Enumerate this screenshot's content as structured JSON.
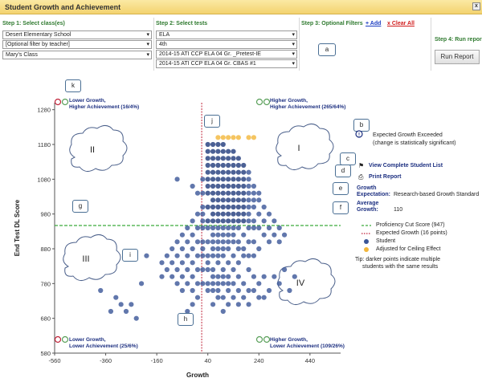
{
  "window": {
    "title": "Student Growth and Achievement",
    "close": "x"
  },
  "step1": {
    "label": "Step 1: Select class(es)",
    "school": "Desert Elementary School",
    "teacher_filter": "[Optional filter by teacher]",
    "class": "Mary's Class"
  },
  "step2": {
    "label": "Step 2: Select tests",
    "subject": "ELA",
    "grade": "4th",
    "test1": "2014-15 ATI CCP ELA 04 Gr. _Pretest-IE",
    "test2": "2014-15 ATI CCP ELA 04 Gr. CBAS #1"
  },
  "step3": {
    "label": "Step 3: Optional Filters",
    "add": "+ Add",
    "clear": "x Clear All"
  },
  "step4": {
    "label": "Step 4: Run repor",
    "run_button": "Run Report"
  },
  "callouts": {
    "a": "a",
    "b": "b",
    "c": "c",
    "d": "d",
    "e": "e",
    "f": "f",
    "g": "g",
    "h": "h",
    "i": "i",
    "j": "j",
    "k": "k"
  },
  "quadrants": {
    "tl": [
      "Lower Growth,",
      "Higher Achievement (16/4%)"
    ],
    "tr": [
      "Higher Growth,",
      "Higher Achievement (265/64%)"
    ],
    "bl": [
      "Lower Growth,",
      "Lower Achievement (25/6%)"
    ],
    "br": [
      "Higher Growth,",
      "Lower Achievement (109/26%)"
    ],
    "labels": [
      "I",
      "II",
      "III",
      "IV"
    ]
  },
  "side": {
    "exceeded": "Expected Growth Exceeded",
    "exceeded_note": "(change is statistically significant)",
    "view_list": "View Complete Student List",
    "print": "Print Report",
    "growth_exp_label": "Growth",
    "growth_exp_label2": "Expectation:",
    "growth_exp_value": "Research-based Growth Standard",
    "avg_label": "Average",
    "avg_label2": "Growth:",
    "avg_value": "110",
    "legend": [
      "Proficiency Cut Score (947)",
      "Expected Growth (16 points)",
      "Student",
      "Adjusted for Ceiling Effect"
    ],
    "tip": "Tip: darker points indicate multiple",
    "tip2": "students with the same results"
  },
  "chart_data": {
    "type": "scatter",
    "xlabel": "Growth",
    "ylabel": "End Test DL Score",
    "xlim": [
      -560,
      560
    ],
    "ylim": [
      580,
      1300
    ],
    "xticks": [
      -560,
      -360,
      -160,
      40,
      240,
      440
    ],
    "yticks": [
      580,
      680,
      780,
      880,
      980,
      1080,
      1180,
      1280
    ],
    "proficiency_cut": 947,
    "expected_growth": 16,
    "colors": {
      "student": "#3a5597",
      "student_dark": "#1f3a7a",
      "ceiling": "#f3b63a",
      "cut": "#3caa3c",
      "growth": "#c0243a"
    },
    "series": [
      {
        "name": "Student",
        "points": [
          [
            -80,
            1080
          ],
          [
            -20,
            1060
          ],
          [
            0,
            1040
          ],
          [
            20,
            1080
          ],
          [
            40,
            1180
          ],
          [
            40,
            1160
          ],
          [
            40,
            1140
          ],
          [
            40,
            1120
          ],
          [
            40,
            1100
          ],
          [
            40,
            1080
          ],
          [
            40,
            1060
          ],
          [
            40,
            1040
          ],
          [
            40,
            1000
          ],
          [
            40,
            960
          ],
          [
            40,
            940
          ],
          [
            40,
            900
          ],
          [
            40,
            860
          ],
          [
            40,
            840
          ],
          [
            60,
            1180
          ],
          [
            60,
            1160
          ],
          [
            60,
            1140
          ],
          [
            60,
            1120
          ],
          [
            60,
            1100
          ],
          [
            60,
            1080
          ],
          [
            60,
            1060
          ],
          [
            60,
            1040
          ],
          [
            60,
            1020
          ],
          [
            60,
            1000
          ],
          [
            60,
            980
          ],
          [
            60,
            960
          ],
          [
            60,
            940
          ],
          [
            60,
            920
          ],
          [
            60,
            900
          ],
          [
            60,
            880
          ],
          [
            60,
            860
          ],
          [
            60,
            820
          ],
          [
            80,
            1180
          ],
          [
            80,
            1160
          ],
          [
            80,
            1140
          ],
          [
            80,
            1120
          ],
          [
            80,
            1100
          ],
          [
            80,
            1080
          ],
          [
            80,
            1060
          ],
          [
            80,
            1040
          ],
          [
            80,
            1020
          ],
          [
            80,
            1000
          ],
          [
            80,
            980
          ],
          [
            80,
            960
          ],
          [
            80,
            940
          ],
          [
            80,
            920
          ],
          [
            80,
            900
          ],
          [
            80,
            880
          ],
          [
            80,
            860
          ],
          [
            80,
            840
          ],
          [
            80,
            800
          ],
          [
            100,
            1180
          ],
          [
            100,
            1160
          ],
          [
            100,
            1140
          ],
          [
            100,
            1120
          ],
          [
            100,
            1100
          ],
          [
            100,
            1080
          ],
          [
            100,
            1060
          ],
          [
            100,
            1040
          ],
          [
            100,
            1020
          ],
          [
            100,
            1000
          ],
          [
            100,
            980
          ],
          [
            100,
            960
          ],
          [
            100,
            940
          ],
          [
            100,
            920
          ],
          [
            100,
            900
          ],
          [
            100,
            880
          ],
          [
            100,
            860
          ],
          [
            100,
            820
          ],
          [
            120,
            1160
          ],
          [
            120,
            1140
          ],
          [
            120,
            1120
          ],
          [
            120,
            1100
          ],
          [
            120,
            1080
          ],
          [
            120,
            1060
          ],
          [
            120,
            1040
          ],
          [
            120,
            1020
          ],
          [
            120,
            1000
          ],
          [
            120,
            980
          ],
          [
            120,
            960
          ],
          [
            120,
            940
          ],
          [
            120,
            920
          ],
          [
            120,
            900
          ],
          [
            120,
            880
          ],
          [
            120,
            840
          ],
          [
            120,
            800
          ],
          [
            140,
            1160
          ],
          [
            140,
            1140
          ],
          [
            140,
            1120
          ],
          [
            140,
            1100
          ],
          [
            140,
            1080
          ],
          [
            140,
            1060
          ],
          [
            140,
            1040
          ],
          [
            140,
            1020
          ],
          [
            140,
            1000
          ],
          [
            140,
            980
          ],
          [
            140,
            960
          ],
          [
            140,
            940
          ],
          [
            140,
            920
          ],
          [
            140,
            900
          ],
          [
            140,
            860
          ],
          [
            140,
            820
          ],
          [
            160,
            1140
          ],
          [
            160,
            1120
          ],
          [
            160,
            1100
          ],
          [
            160,
            1080
          ],
          [
            160,
            1060
          ],
          [
            160,
            1040
          ],
          [
            160,
            1020
          ],
          [
            160,
            1000
          ],
          [
            160,
            980
          ],
          [
            160,
            960
          ],
          [
            160,
            940
          ],
          [
            160,
            900
          ],
          [
            160,
            880
          ],
          [
            160,
            840
          ],
          [
            180,
            1120
          ],
          [
            180,
            1100
          ],
          [
            180,
            1080
          ],
          [
            180,
            1060
          ],
          [
            180,
            1040
          ],
          [
            180,
            1020
          ],
          [
            180,
            1000
          ],
          [
            180,
            980
          ],
          [
            180,
            960
          ],
          [
            180,
            920
          ],
          [
            180,
            880
          ],
          [
            180,
            860
          ],
          [
            200,
            1100
          ],
          [
            200,
            1080
          ],
          [
            200,
            1060
          ],
          [
            200,
            1040
          ],
          [
            200,
            1020
          ],
          [
            200,
            1000
          ],
          [
            200,
            980
          ],
          [
            200,
            960
          ],
          [
            200,
            940
          ],
          [
            200,
            900
          ],
          [
            200,
            860
          ],
          [
            200,
            820
          ],
          [
            220,
            1060
          ],
          [
            220,
            1040
          ],
          [
            220,
            1020
          ],
          [
            220,
            1000
          ],
          [
            220,
            960
          ],
          [
            220,
            940
          ],
          [
            220,
            900
          ],
          [
            220,
            860
          ],
          [
            240,
            1040
          ],
          [
            240,
            1020
          ],
          [
            240,
            980
          ],
          [
            240,
            940
          ],
          [
            240,
            880
          ],
          [
            260,
            1000
          ],
          [
            260,
            960
          ],
          [
            260,
            920
          ],
          [
            280,
            980
          ],
          [
            280,
            940
          ],
          [
            280,
            900
          ],
          [
            300,
            960
          ],
          [
            300,
            920
          ],
          [
            320,
            940
          ],
          [
            320,
            900
          ],
          [
            340,
            920
          ],
          [
            20,
            1040
          ],
          [
            20,
            1000
          ],
          [
            20,
            980
          ],
          [
            20,
            960
          ],
          [
            20,
            940
          ],
          [
            20,
            900
          ],
          [
            20,
            880
          ],
          [
            20,
            860
          ],
          [
            20,
            820
          ],
          [
            20,
            780
          ],
          [
            0,
            980
          ],
          [
            0,
            940
          ],
          [
            0,
            900
          ],
          [
            0,
            860
          ],
          [
            0,
            820
          ],
          [
            0,
            780
          ],
          [
            0,
            740
          ],
          [
            -20,
            960
          ],
          [
            -20,
            920
          ],
          [
            -20,
            880
          ],
          [
            -20,
            840
          ],
          [
            -20,
            800
          ],
          [
            -20,
            760
          ],
          [
            -20,
            720
          ],
          [
            -40,
            940
          ],
          [
            -40,
            900
          ],
          [
            -40,
            860
          ],
          [
            -40,
            820
          ],
          [
            -40,
            780
          ],
          [
            -40,
            700
          ],
          [
            -60,
            920
          ],
          [
            -60,
            880
          ],
          [
            -60,
            840
          ],
          [
            -60,
            800
          ],
          [
            -60,
            760
          ],
          [
            -80,
            900
          ],
          [
            -80,
            860
          ],
          [
            -80,
            820
          ],
          [
            -80,
            780
          ],
          [
            -100,
            880
          ],
          [
            -100,
            840
          ],
          [
            -100,
            800
          ],
          [
            -120,
            860
          ],
          [
            -120,
            820
          ],
          [
            -140,
            840
          ],
          [
            -140,
            800
          ],
          [
            40,
            820
          ],
          [
            40,
            780
          ],
          [
            40,
            760
          ],
          [
            60,
            800
          ],
          [
            60,
            780
          ],
          [
            60,
            760
          ],
          [
            60,
            720
          ],
          [
            80,
            780
          ],
          [
            80,
            760
          ],
          [
            80,
            740
          ],
          [
            100,
            800
          ],
          [
            100,
            780
          ],
          [
            100,
            740
          ],
          [
            100,
            700
          ],
          [
            120,
            780
          ],
          [
            120,
            760
          ],
          [
            120,
            720
          ],
          [
            140,
            780
          ],
          [
            140,
            740
          ],
          [
            160,
            800
          ],
          [
            160,
            760
          ],
          [
            160,
            720
          ],
          [
            180,
            780
          ],
          [
            180,
            740
          ],
          [
            200,
            760
          ],
          [
            200,
            720
          ],
          [
            220,
            800
          ],
          [
            220,
            760
          ],
          [
            240,
            780
          ],
          [
            240,
            740
          ],
          [
            260,
            800
          ],
          [
            260,
            740
          ],
          [
            280,
            760
          ],
          [
            300,
            800
          ],
          [
            320,
            780
          ],
          [
            340,
            820
          ],
          [
            360,
            760
          ],
          [
            380,
            800
          ],
          [
            -200,
            860
          ],
          [
            -220,
            780
          ],
          [
            -300,
            720
          ],
          [
            -320,
            740
          ],
          [
            -340,
            700
          ],
          [
            -380,
            760
          ],
          [
            -260,
            720
          ],
          [
            -280,
            700
          ],
          [
            -240,
            680
          ]
        ]
      },
      {
        "name": "Adjusted for Ceiling Effect",
        "points": [
          [
            100,
            1200
          ],
          [
            120,
            1200
          ],
          [
            140,
            1200
          ],
          [
            160,
            1200
          ],
          [
            200,
            1200
          ],
          [
            220,
            1200
          ],
          [
            80,
            1200
          ]
        ]
      }
    ]
  }
}
